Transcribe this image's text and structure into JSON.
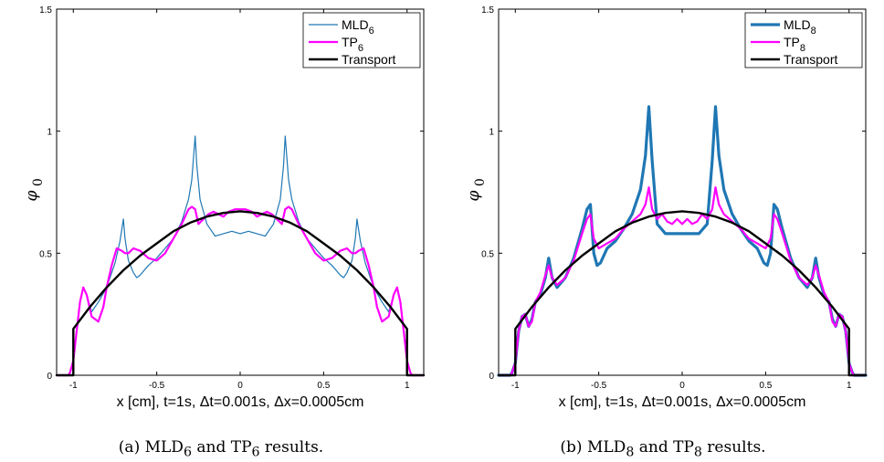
{
  "chart_data": [
    {
      "type": "line",
      "caption": {
        "prefix": "(a) MLD",
        "sub1": "6",
        "middle": " and TP",
        "sub2": "6",
        "suffix": " results."
      },
      "xlabel": "x [cm], t=1s, Δt=0.001s, Δx=0.0005cm",
      "ylabel": {
        "base": "φ",
        "sub": "0"
      },
      "xlim": [
        -1.1,
        1.1
      ],
      "ylim": [
        0,
        1.5
      ],
      "xticks": [
        {
          "v": -1,
          "label": "-1"
        },
        {
          "v": -0.5,
          "label": "-0.5"
        },
        {
          "v": 0,
          "label": "0"
        },
        {
          "v": 0.5,
          "label": "0.5"
        },
        {
          "v": 1,
          "label": "1"
        }
      ],
      "yticks": [
        {
          "v": 0,
          "label": "0"
        },
        {
          "v": 0.5,
          "label": "0.5"
        },
        {
          "v": 1,
          "label": "1"
        },
        {
          "v": 1.5,
          "label": "1.5"
        }
      ],
      "legend_position": "top-right",
      "series": [
        {
          "name": "MLD",
          "name_sub": "6",
          "color": "#1f77b4",
          "width": 1.2,
          "x": [
            -1.1,
            -1.03,
            -1.02,
            -1.0,
            -0.98,
            -0.96,
            -0.94,
            -0.92,
            -0.89,
            -0.85,
            -0.8,
            -0.75,
            -0.72,
            -0.7,
            -0.69,
            -0.67,
            -0.64,
            -0.62,
            -0.6,
            -0.55,
            -0.5,
            -0.45,
            -0.4,
            -0.35,
            -0.31,
            -0.29,
            -0.27,
            -0.26,
            -0.24,
            -0.2,
            -0.15,
            -0.1,
            -0.05,
            0.0,
            0.05,
            0.1,
            0.15,
            0.2,
            0.24,
            0.26,
            0.27,
            0.29,
            0.31,
            0.35,
            0.4,
            0.45,
            0.5,
            0.55,
            0.6,
            0.62,
            0.64,
            0.67,
            0.69,
            0.7,
            0.72,
            0.75,
            0.8,
            0.85,
            0.89,
            0.92,
            0.94,
            0.96,
            0.98,
            1.0,
            1.02,
            1.03,
            1.1
          ],
          "y": [
            0,
            0,
            0.01,
            0.06,
            0.18,
            0.3,
            0.36,
            0.33,
            0.26,
            0.3,
            0.36,
            0.46,
            0.55,
            0.64,
            0.56,
            0.47,
            0.42,
            0.4,
            0.41,
            0.45,
            0.48,
            0.52,
            0.56,
            0.63,
            0.72,
            0.8,
            0.98,
            0.86,
            0.72,
            0.62,
            0.57,
            0.58,
            0.59,
            0.58,
            0.59,
            0.58,
            0.57,
            0.62,
            0.72,
            0.86,
            0.98,
            0.8,
            0.72,
            0.63,
            0.56,
            0.52,
            0.48,
            0.45,
            0.41,
            0.4,
            0.42,
            0.47,
            0.56,
            0.64,
            0.55,
            0.46,
            0.36,
            0.3,
            0.26,
            0.33,
            0.36,
            0.3,
            0.18,
            0.06,
            0.01,
            0,
            0
          ]
        },
        {
          "name": "TP",
          "name_sub": "6",
          "color": "#ff00ff",
          "width": 2.2,
          "x": [
            -1.1,
            -1.03,
            -1.02,
            -1.0,
            -0.98,
            -0.96,
            -0.94,
            -0.92,
            -0.89,
            -0.85,
            -0.82,
            -0.8,
            -0.77,
            -0.74,
            -0.71,
            -0.69,
            -0.67,
            -0.64,
            -0.6,
            -0.55,
            -0.5,
            -0.45,
            -0.4,
            -0.35,
            -0.31,
            -0.29,
            -0.27,
            -0.25,
            -0.22,
            -0.19,
            -0.16,
            -0.13,
            -0.1,
            -0.07,
            -0.03,
            0.0,
            0.03,
            0.07,
            0.1,
            0.13,
            0.16,
            0.19,
            0.22,
            0.25,
            0.27,
            0.29,
            0.31,
            0.35,
            0.4,
            0.45,
            0.5,
            0.55,
            0.6,
            0.64,
            0.67,
            0.69,
            0.71,
            0.74,
            0.77,
            0.8,
            0.82,
            0.85,
            0.89,
            0.92,
            0.94,
            0.96,
            0.98,
            1.0,
            1.02,
            1.03,
            1.1
          ],
          "y": [
            0,
            0,
            0.01,
            0.06,
            0.18,
            0.3,
            0.36,
            0.33,
            0.24,
            0.22,
            0.28,
            0.36,
            0.45,
            0.52,
            0.51,
            0.5,
            0.5,
            0.52,
            0.51,
            0.48,
            0.47,
            0.5,
            0.56,
            0.62,
            0.68,
            0.69,
            0.68,
            0.62,
            0.64,
            0.66,
            0.67,
            0.66,
            0.65,
            0.67,
            0.68,
            0.68,
            0.68,
            0.67,
            0.65,
            0.66,
            0.67,
            0.66,
            0.64,
            0.62,
            0.68,
            0.69,
            0.68,
            0.62,
            0.56,
            0.5,
            0.47,
            0.48,
            0.51,
            0.52,
            0.5,
            0.5,
            0.51,
            0.52,
            0.45,
            0.36,
            0.28,
            0.22,
            0.24,
            0.33,
            0.36,
            0.3,
            0.18,
            0.06,
            0.01,
            0,
            0
          ]
        },
        {
          "name": "Transport",
          "name_sub": "",
          "color": "#000000",
          "width": 2.4,
          "x": [
            -1.1,
            -1.0,
            -1.0,
            -0.9,
            -0.8,
            -0.7,
            -0.6,
            -0.5,
            -0.4,
            -0.3,
            -0.2,
            -0.1,
            0.0,
            0.1,
            0.2,
            0.3,
            0.4,
            0.5,
            0.6,
            0.7,
            0.8,
            0.9,
            1.0,
            1.0,
            1.1
          ],
          "y": [
            0,
            0,
            0.19,
            0.28,
            0.36,
            0.43,
            0.49,
            0.54,
            0.59,
            0.625,
            0.65,
            0.665,
            0.672,
            0.665,
            0.65,
            0.625,
            0.59,
            0.54,
            0.49,
            0.43,
            0.36,
            0.28,
            0.19,
            0,
            0
          ]
        }
      ]
    },
    {
      "type": "line",
      "caption": {
        "prefix": "(b) MLD",
        "sub1": "8",
        "middle": " and TP",
        "sub2": "8",
        "suffix": " results."
      },
      "xlabel": "x [cm], t=1s, Δt=0.001s, Δx=0.0005cm",
      "ylabel": {
        "base": "φ",
        "sub": "0"
      },
      "xlim": [
        -1.1,
        1.1
      ],
      "ylim": [
        0,
        1.5
      ],
      "xticks": [
        {
          "v": -1,
          "label": "-1"
        },
        {
          "v": -0.5,
          "label": "-0.5"
        },
        {
          "v": 0,
          "label": "0"
        },
        {
          "v": 0.5,
          "label": "0.5"
        },
        {
          "v": 1,
          "label": "1"
        }
      ],
      "yticks": [
        {
          "v": 0,
          "label": "0"
        },
        {
          "v": 0.5,
          "label": "0.5"
        },
        {
          "v": 1,
          "label": "1"
        },
        {
          "v": 1.5,
          "label": "1.5"
        }
      ],
      "legend_position": "top-right",
      "series": [
        {
          "name": "MLD",
          "name_sub": "8",
          "color": "#1f77b4",
          "width": 3.2,
          "x": [
            -1.1,
            -1.03,
            -1.02,
            -1.0,
            -0.98,
            -0.96,
            -0.94,
            -0.92,
            -0.9,
            -0.88,
            -0.85,
            -0.82,
            -0.8,
            -0.78,
            -0.75,
            -0.7,
            -0.65,
            -0.6,
            -0.57,
            -0.55,
            -0.53,
            -0.51,
            -0.49,
            -0.45,
            -0.4,
            -0.35,
            -0.3,
            -0.25,
            -0.22,
            -0.2,
            -0.18,
            -0.15,
            -0.1,
            -0.05,
            0.0,
            0.05,
            0.1,
            0.15,
            0.18,
            0.2,
            0.22,
            0.25,
            0.3,
            0.35,
            0.4,
            0.45,
            0.49,
            0.51,
            0.53,
            0.55,
            0.57,
            0.6,
            0.65,
            0.7,
            0.75,
            0.78,
            0.8,
            0.82,
            0.85,
            0.88,
            0.9,
            0.92,
            0.94,
            0.96,
            0.98,
            1.0,
            1.02,
            1.03,
            1.1
          ],
          "y": [
            0,
            0,
            0.01,
            0.05,
            0.18,
            0.24,
            0.25,
            0.2,
            0.23,
            0.3,
            0.33,
            0.4,
            0.48,
            0.4,
            0.36,
            0.4,
            0.48,
            0.6,
            0.68,
            0.7,
            0.5,
            0.45,
            0.46,
            0.52,
            0.55,
            0.6,
            0.66,
            0.76,
            0.9,
            1.1,
            0.88,
            0.62,
            0.58,
            0.58,
            0.58,
            0.58,
            0.58,
            0.62,
            0.88,
            1.1,
            0.9,
            0.76,
            0.66,
            0.6,
            0.55,
            0.52,
            0.46,
            0.45,
            0.5,
            0.7,
            0.68,
            0.6,
            0.48,
            0.4,
            0.36,
            0.4,
            0.48,
            0.4,
            0.33,
            0.3,
            0.23,
            0.2,
            0.25,
            0.24,
            0.18,
            0.05,
            0.01,
            0,
            0
          ]
        },
        {
          "name": "TP",
          "name_sub": "8",
          "color": "#ff00ff",
          "width": 2.2,
          "x": [
            -1.1,
            -1.03,
            -1.02,
            -1.0,
            -0.98,
            -0.96,
            -0.94,
            -0.92,
            -0.9,
            -0.88,
            -0.85,
            -0.82,
            -0.8,
            -0.78,
            -0.75,
            -0.7,
            -0.65,
            -0.6,
            -0.57,
            -0.55,
            -0.53,
            -0.5,
            -0.45,
            -0.4,
            -0.35,
            -0.3,
            -0.25,
            -0.22,
            -0.2,
            -0.18,
            -0.15,
            -0.12,
            -0.09,
            -0.06,
            -0.03,
            0.0,
            0.03,
            0.06,
            0.09,
            0.12,
            0.15,
            0.18,
            0.2,
            0.22,
            0.25,
            0.3,
            0.35,
            0.4,
            0.45,
            0.5,
            0.53,
            0.55,
            0.57,
            0.6,
            0.65,
            0.7,
            0.75,
            0.78,
            0.8,
            0.82,
            0.85,
            0.88,
            0.9,
            0.92,
            0.94,
            0.96,
            0.98,
            1.0,
            1.02,
            1.03,
            1.1
          ],
          "y": [
            0,
            0,
            0.01,
            0.05,
            0.18,
            0.24,
            0.25,
            0.2,
            0.22,
            0.3,
            0.34,
            0.41,
            0.45,
            0.4,
            0.37,
            0.4,
            0.47,
            0.58,
            0.64,
            0.66,
            0.56,
            0.52,
            0.54,
            0.56,
            0.6,
            0.63,
            0.66,
            0.7,
            0.77,
            0.68,
            0.64,
            0.66,
            0.63,
            0.62,
            0.64,
            0.62,
            0.64,
            0.62,
            0.63,
            0.66,
            0.64,
            0.68,
            0.77,
            0.7,
            0.66,
            0.63,
            0.6,
            0.56,
            0.54,
            0.52,
            0.56,
            0.66,
            0.64,
            0.58,
            0.47,
            0.4,
            0.37,
            0.4,
            0.45,
            0.41,
            0.34,
            0.3,
            0.22,
            0.2,
            0.25,
            0.24,
            0.18,
            0.05,
            0.01,
            0,
            0
          ]
        },
        {
          "name": "Transport",
          "name_sub": "",
          "color": "#000000",
          "width": 2.4,
          "x": [
            -1.1,
            -1.0,
            -1.0,
            -0.9,
            -0.8,
            -0.7,
            -0.6,
            -0.5,
            -0.4,
            -0.3,
            -0.2,
            -0.1,
            0.0,
            0.1,
            0.2,
            0.3,
            0.4,
            0.5,
            0.6,
            0.7,
            0.8,
            0.9,
            1.0,
            1.0,
            1.1
          ],
          "y": [
            0,
            0,
            0.19,
            0.28,
            0.36,
            0.43,
            0.49,
            0.54,
            0.59,
            0.625,
            0.65,
            0.665,
            0.672,
            0.665,
            0.65,
            0.625,
            0.59,
            0.54,
            0.49,
            0.43,
            0.36,
            0.28,
            0.19,
            0,
            0
          ]
        }
      ]
    }
  ]
}
